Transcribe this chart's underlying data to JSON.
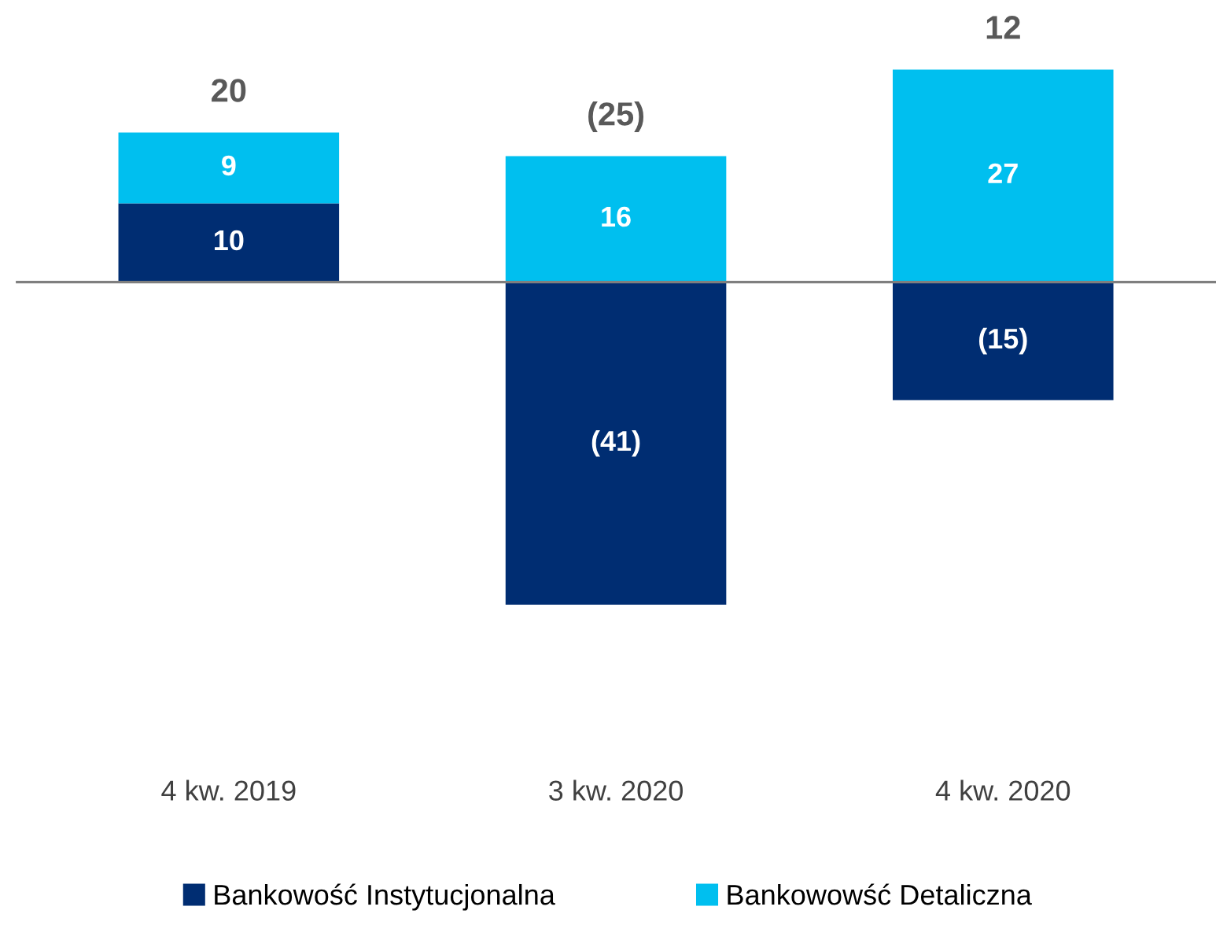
{
  "chart_data": {
    "type": "bar",
    "stacked": true,
    "categories": [
      "4 kw. 2019",
      "3 kw. 2020",
      "4 kw. 2020"
    ],
    "series": [
      {
        "name": "Bankowość Instytucjonalna",
        "color": "#002d72",
        "values": [
          10,
          -41,
          -15
        ],
        "value_labels": [
          "10",
          "(41)",
          "(15)"
        ]
      },
      {
        "name": "Bankowowść Detaliczna",
        "color": "#00bfef",
        "values": [
          9,
          16,
          27
        ],
        "value_labels": [
          "9",
          "16",
          "27"
        ]
      }
    ],
    "totals": [
      "20",
      "(25)",
      "12"
    ],
    "legend": "bottom",
    "grid": false
  }
}
